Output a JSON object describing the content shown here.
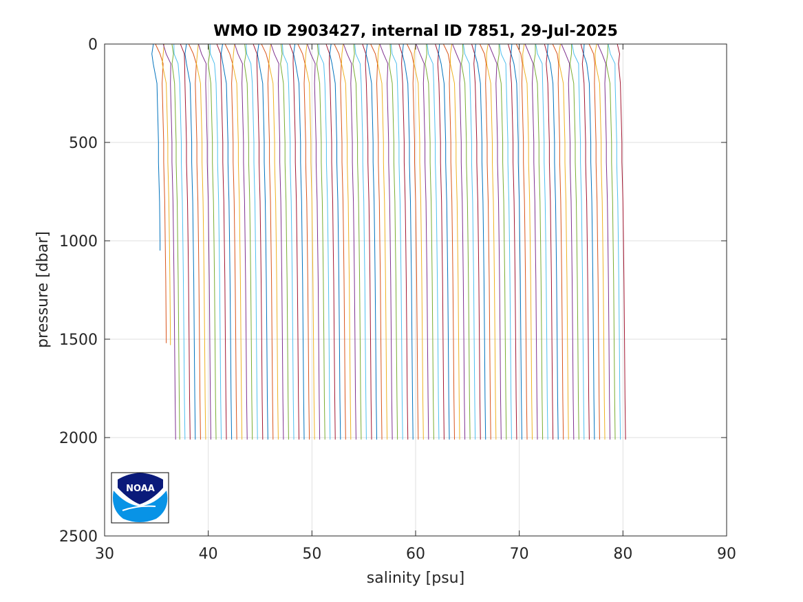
{
  "chart_data": {
    "type": "line",
    "title": "WMO ID 2903427, internal ID 7851, 29-Jul-2025",
    "xlabel": "salinity [psu]",
    "ylabel": "pressure [dbar]",
    "xlim": [
      30,
      90
    ],
    "ylim": [
      0,
      2500
    ],
    "y_reversed": true,
    "grid": true,
    "x_ticks": [
      "30",
      "40",
      "50",
      "60",
      "70",
      "80",
      "90"
    ],
    "y_ticks": [
      "0",
      "500",
      "1000",
      "1500",
      "2000",
      "2500"
    ],
    "offset_per_profile_psu": 0.5,
    "series_colors": [
      "#0072bd",
      "#d95319",
      "#edb120",
      "#7e2f8e",
      "#77ac30",
      "#4dbeee",
      "#a2142f"
    ],
    "profile_shape_pressure": [
      0,
      50,
      100,
      200,
      300,
      400,
      500,
      600,
      700,
      800,
      1000,
      1200,
      1500,
      1800,
      2000
    ],
    "profile_shape_salinity_offset": [
      -0.6,
      -0.45,
      -0.3,
      -0.15,
      -0.1,
      -0.05,
      0.0,
      0.0,
      0.05,
      0.1,
      0.15,
      0.2,
      0.25,
      0.3,
      0.35
    ],
    "profiles": [
      {
        "base_salinity": 35.2,
        "max_pressure": 1050
      },
      {
        "base_salinity": 35.7,
        "max_pressure": 1520
      },
      {
        "base_salinity": 36.1,
        "max_pressure": 1530
      },
      {
        "base_salinity": 36.5,
        "max_pressure": 2010
      }
    ],
    "full_depth_profiles": {
      "first_base_salinity": 36.9,
      "last_base_salinity": 80.2,
      "step": 0.5,
      "max_pressure": 2010
    }
  },
  "logo": {
    "text": "NOAA"
  }
}
